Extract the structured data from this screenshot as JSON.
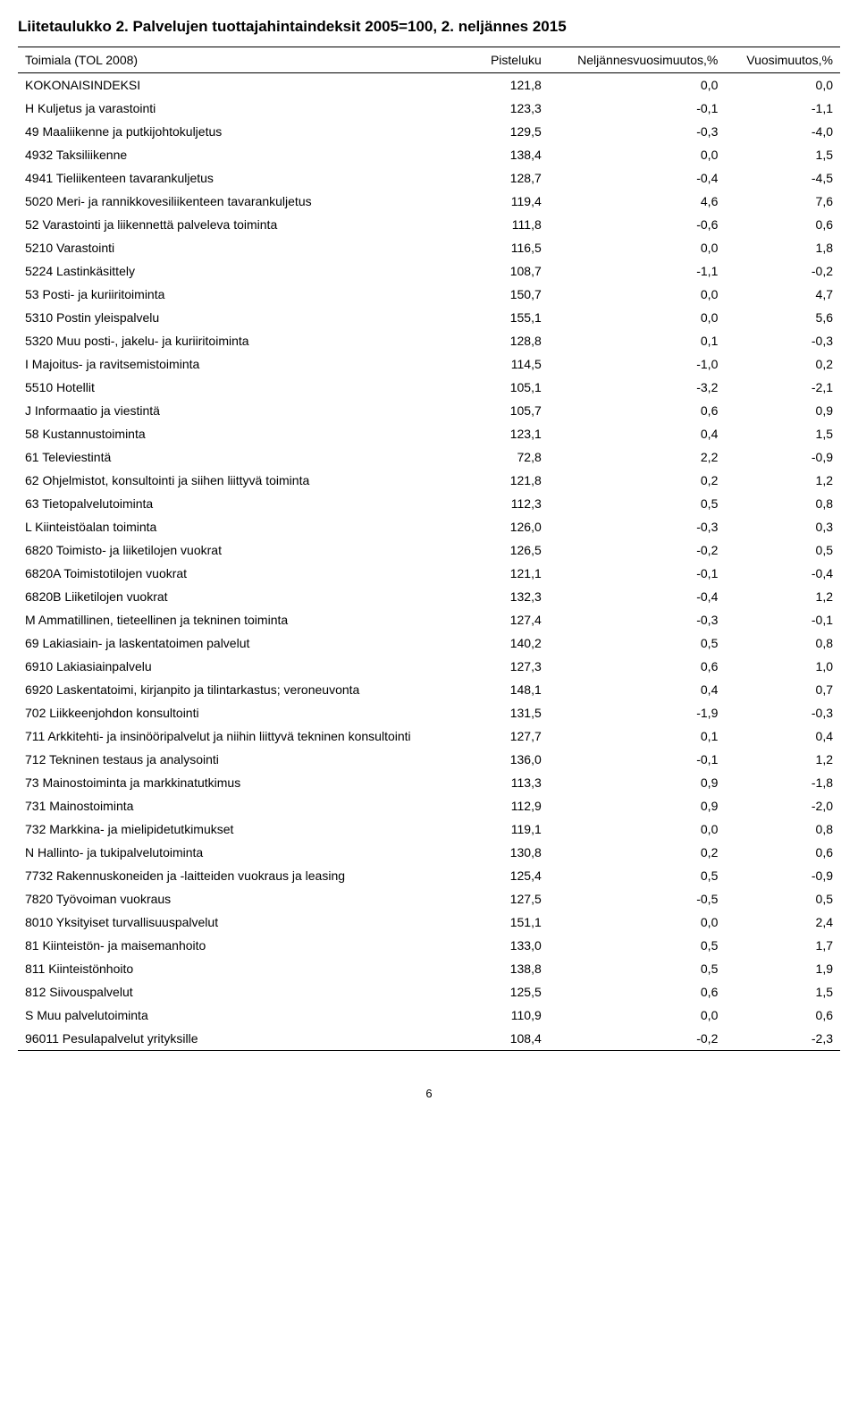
{
  "title": "Liitetaulukko 2. Palvelujen tuottajahintaindeksit 2005=100, 2. neljännes 2015",
  "columns": [
    "Toimiala (TOL 2008)",
    "Pisteluku",
    "Neljännesvuosimuutos,%",
    "Vuosimuutos,%"
  ],
  "rows": [
    [
      "KOKONAISINDEKSI",
      "121,8",
      "0,0",
      "0,0"
    ],
    [
      "H Kuljetus ja varastointi",
      "123,3",
      "-0,1",
      "-1,1"
    ],
    [
      "49 Maaliikenne ja putkijohtokuljetus",
      "129,5",
      "-0,3",
      "-4,0"
    ],
    [
      "4932 Taksiliikenne",
      "138,4",
      "0,0",
      "1,5"
    ],
    [
      "4941 Tieliikenteen tavarankuljetus",
      "128,7",
      "-0,4",
      "-4,5"
    ],
    [
      "5020 Meri- ja rannikkovesiliikenteen tavarankuljetus",
      "119,4",
      "4,6",
      "7,6"
    ],
    [
      "52 Varastointi ja liikennettä palveleva toiminta",
      "111,8",
      "-0,6",
      "0,6"
    ],
    [
      "5210 Varastointi",
      "116,5",
      "0,0",
      "1,8"
    ],
    [
      "5224 Lastinkäsittely",
      "108,7",
      "-1,1",
      "-0,2"
    ],
    [
      "53 Posti- ja kuriiritoiminta",
      "150,7",
      "0,0",
      "4,7"
    ],
    [
      "5310 Postin yleispalvelu",
      "155,1",
      "0,0",
      "5,6"
    ],
    [
      "5320 Muu posti-, jakelu- ja kuriiritoiminta",
      "128,8",
      "0,1",
      "-0,3"
    ],
    [
      "I Majoitus- ja ravitsemistoiminta",
      "114,5",
      "-1,0",
      "0,2"
    ],
    [
      "5510 Hotellit",
      "105,1",
      "-3,2",
      "-2,1"
    ],
    [
      "J Informaatio ja viestintä",
      "105,7",
      "0,6",
      "0,9"
    ],
    [
      "58 Kustannustoiminta",
      "123,1",
      "0,4",
      "1,5"
    ],
    [
      "61 Televiestintä",
      "72,8",
      "2,2",
      "-0,9"
    ],
    [
      "62 Ohjelmistot, konsultointi ja siihen liittyvä toiminta",
      "121,8",
      "0,2",
      "1,2"
    ],
    [
      "63 Tietopalvelutoiminta",
      "112,3",
      "0,5",
      "0,8"
    ],
    [
      "L Kiinteistöalan toiminta",
      "126,0",
      "-0,3",
      "0,3"
    ],
    [
      "6820 Toimisto- ja liiketilojen vuokrat",
      "126,5",
      "-0,2",
      "0,5"
    ],
    [
      "6820A Toimistotilojen vuokrat",
      "121,1",
      "-0,1",
      "-0,4"
    ],
    [
      "6820B Liiketilojen vuokrat",
      "132,3",
      "-0,4",
      "1,2"
    ],
    [
      "M Ammatillinen, tieteellinen ja tekninen toiminta",
      "127,4",
      "-0,3",
      "-0,1"
    ],
    [
      "69 Lakiasiain- ja laskentatoimen palvelut",
      "140,2",
      "0,5",
      "0,8"
    ],
    [
      "6910 Lakiasiainpalvelu",
      "127,3",
      "0,6",
      "1,0"
    ],
    [
      "6920 Laskentatoimi, kirjanpito ja tilintarkastus; veroneuvonta",
      "148,1",
      "0,4",
      "0,7"
    ],
    [
      "702 Liikkeenjohdon konsultointi",
      "131,5",
      "-1,9",
      "-0,3"
    ],
    [
      "711 Arkkitehti- ja insinööripalvelut ja niihin liittyvä tekninen konsultointi",
      "127,7",
      "0,1",
      "0,4"
    ],
    [
      "712 Tekninen testaus ja analysointi",
      "136,0",
      "-0,1",
      "1,2"
    ],
    [
      "73 Mainostoiminta ja markkinatutkimus",
      "113,3",
      "0,9",
      "-1,8"
    ],
    [
      "731 Mainostoiminta",
      "112,9",
      "0,9",
      "-2,0"
    ],
    [
      "732 Markkina- ja mielipidetutkimukset",
      "119,1",
      "0,0",
      "0,8"
    ],
    [
      "N Hallinto- ja tukipalvelutoiminta",
      "130,8",
      "0,2",
      "0,6"
    ],
    [
      "7732 Rakennuskoneiden ja -laitteiden vuokraus ja leasing",
      "125,4",
      "0,5",
      "-0,9"
    ],
    [
      "7820 Työvoiman vuokraus",
      "127,5",
      "-0,5",
      "0,5"
    ],
    [
      "8010 Yksityiset turvallisuuspalvelut",
      "151,1",
      "0,0",
      "2,4"
    ],
    [
      "81 Kiinteistön- ja maisemanhoito",
      "133,0",
      "0,5",
      "1,7"
    ],
    [
      "811 Kiinteistönhoito",
      "138,8",
      "0,5",
      "1,9"
    ],
    [
      "812 Siivouspalvelut",
      "125,5",
      "0,6",
      "1,5"
    ],
    [
      "S Muu palvelutoiminta",
      "110,9",
      "0,0",
      "0,6"
    ],
    [
      "96011 Pesulapalvelut yrityksille",
      "108,4",
      "-0,2",
      "-2,3"
    ]
  ],
  "pageNumber": "6"
}
